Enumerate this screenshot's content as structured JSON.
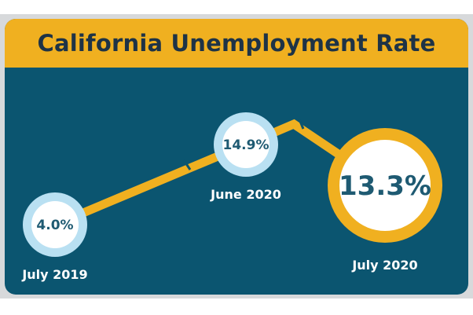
{
  "header": {
    "title": "California Unemployment Rate"
  },
  "colors": {
    "background": "#0b5570",
    "accent": "#f0b020",
    "title_text": "#1e3346",
    "value_text": "#1e5a72",
    "date_text": "#ffffff",
    "small_ring": "#b9e0f2"
  },
  "chart_data": {
    "type": "line",
    "title": "California Unemployment Rate",
    "xlabel": "",
    "ylabel": "",
    "categories": [
      "July 2019",
      "June 2020",
      "July 2020"
    ],
    "value_labels": [
      "4.0%",
      "14.9%",
      "13.3%"
    ],
    "series": [
      {
        "values": [
          4.0,
          14.9,
          13.3
        ]
      }
    ],
    "ylim": [
      0,
      16
    ],
    "grid": false,
    "highlight": "July 2020"
  }
}
